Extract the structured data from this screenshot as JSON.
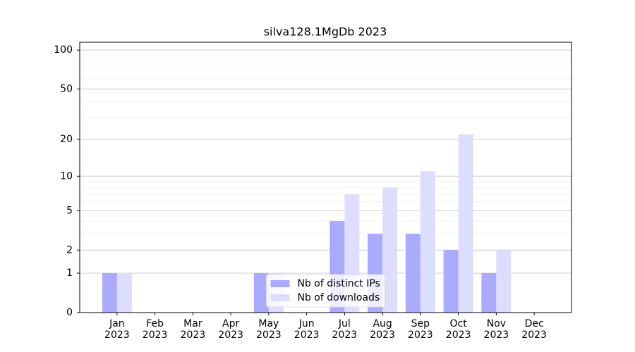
{
  "chart_data": {
    "type": "bar",
    "title": "silva128.1MgDb 2023",
    "categories": [
      "Jan 2023",
      "Feb 2023",
      "Mar 2023",
      "Apr 2023",
      "May 2023",
      "Jun 2023",
      "Jul 2023",
      "Aug 2023",
      "Sep 2023",
      "Oct 2023",
      "Nov 2023",
      "Dec 2023"
    ],
    "series": [
      {
        "name": "Nb of distinct IPs",
        "color": "#aaaaff",
        "values": [
          1,
          0,
          0,
          0,
          1,
          0,
          4,
          3,
          3,
          2,
          1,
          0
        ]
      },
      {
        "name": "Nb of downloads",
        "color": "#ddddff",
        "values": [
          1,
          0,
          0,
          0,
          1,
          0,
          7,
          8,
          11,
          22,
          2,
          0
        ]
      }
    ],
    "yscale": "log1p",
    "ylim": [
      0,
      115
    ],
    "yticks": [
      0,
      1,
      2,
      5,
      10,
      20,
      50,
      100
    ],
    "minor_yticks": [
      3,
      4,
      6,
      7,
      8,
      9,
      30,
      40,
      60,
      70,
      80,
      90
    ],
    "grid": true,
    "legend": "lower center"
  }
}
